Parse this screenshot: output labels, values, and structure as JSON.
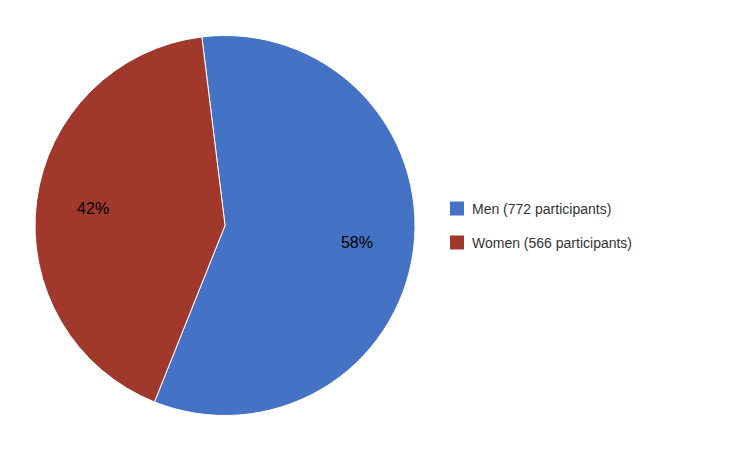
{
  "chart_data": {
    "type": "pie",
    "categories": [
      "Men (772 participants)",
      "Women (566 participants)"
    ],
    "values": [
      58,
      42
    ],
    "value_labels": [
      "58%",
      "42%"
    ],
    "colors": [
      "#4472C4",
      "#A0392B"
    ],
    "data_labels": true,
    "legend": "right"
  }
}
